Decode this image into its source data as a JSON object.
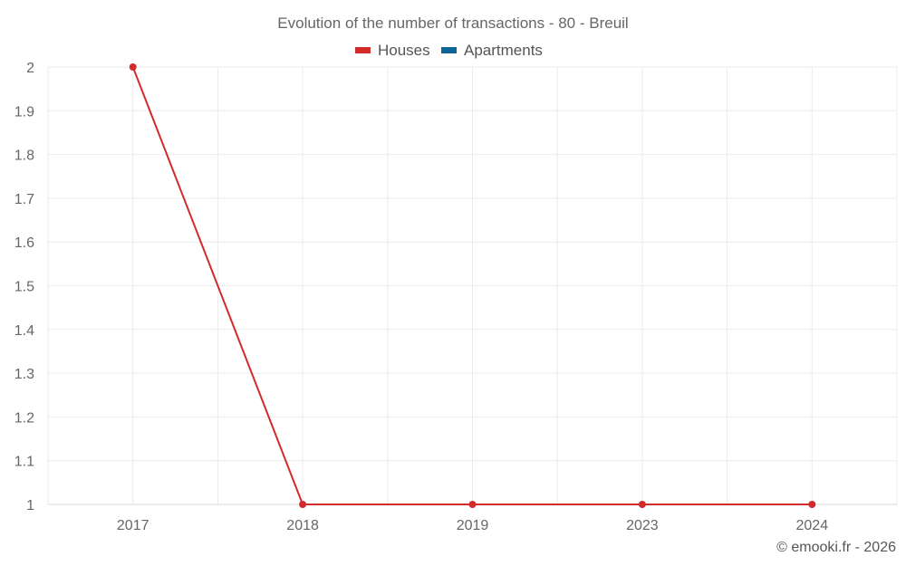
{
  "chart_data": {
    "type": "line",
    "title": "Evolution of the number of transactions - 80 - Breuil",
    "categories": [
      "2017",
      "2018",
      "2019",
      "2023",
      "2024"
    ],
    "series": [
      {
        "name": "Houses",
        "color": "#d32b2b",
        "values": [
          2,
          1,
          1,
          1,
          1
        ]
      },
      {
        "name": "Apartments",
        "color": "#0b6596",
        "values": [
          null,
          null,
          null,
          null,
          null
        ]
      }
    ],
    "ylim": [
      1,
      2
    ],
    "yticks": [
      "1",
      "1.1",
      "1.2",
      "1.3",
      "1.4",
      "1.5",
      "1.6",
      "1.7",
      "1.8",
      "1.9",
      "2"
    ],
    "xlabel": "",
    "ylabel": "",
    "grid": true,
    "legend_position": "top-center"
  },
  "credit": "© emooki.fr - 2026"
}
